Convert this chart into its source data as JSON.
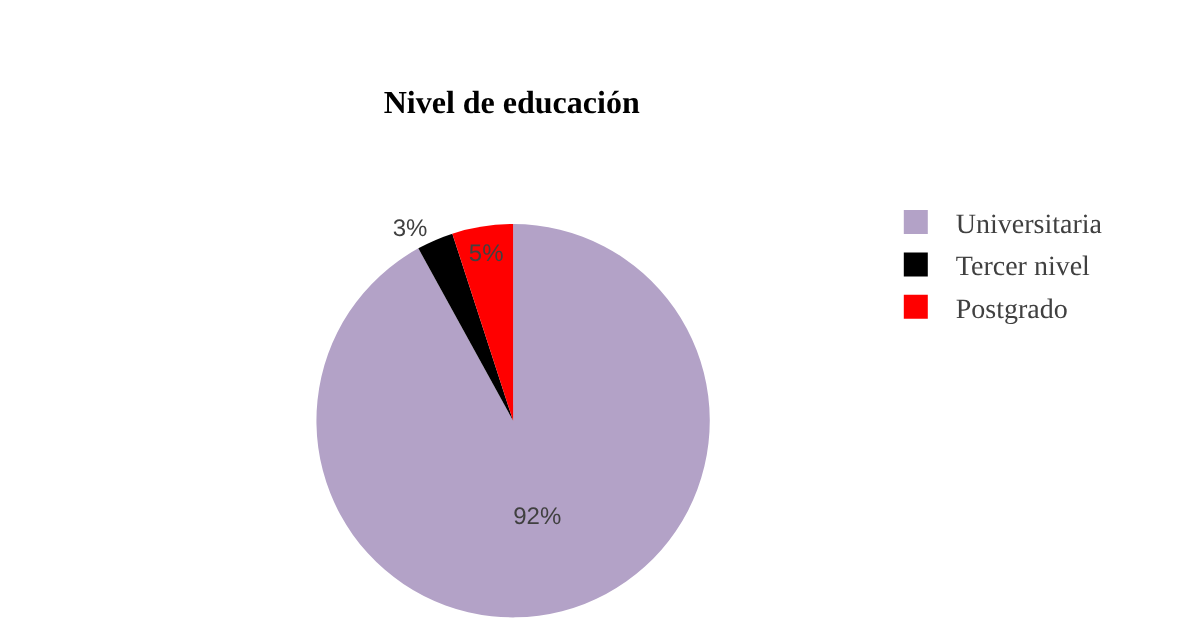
{
  "chart_data": {
    "type": "pie",
    "title": "Nivel de educación",
    "categories": [
      "Universitaria",
      "Tercer nivel",
      "Postgrado"
    ],
    "values": [
      92,
      3,
      5
    ],
    "value_labels": [
      "92%",
      "3%",
      "5%"
    ],
    "colors": [
      "#b3a2c7",
      "#000000",
      "#ff0000"
    ],
    "legend": "right"
  }
}
